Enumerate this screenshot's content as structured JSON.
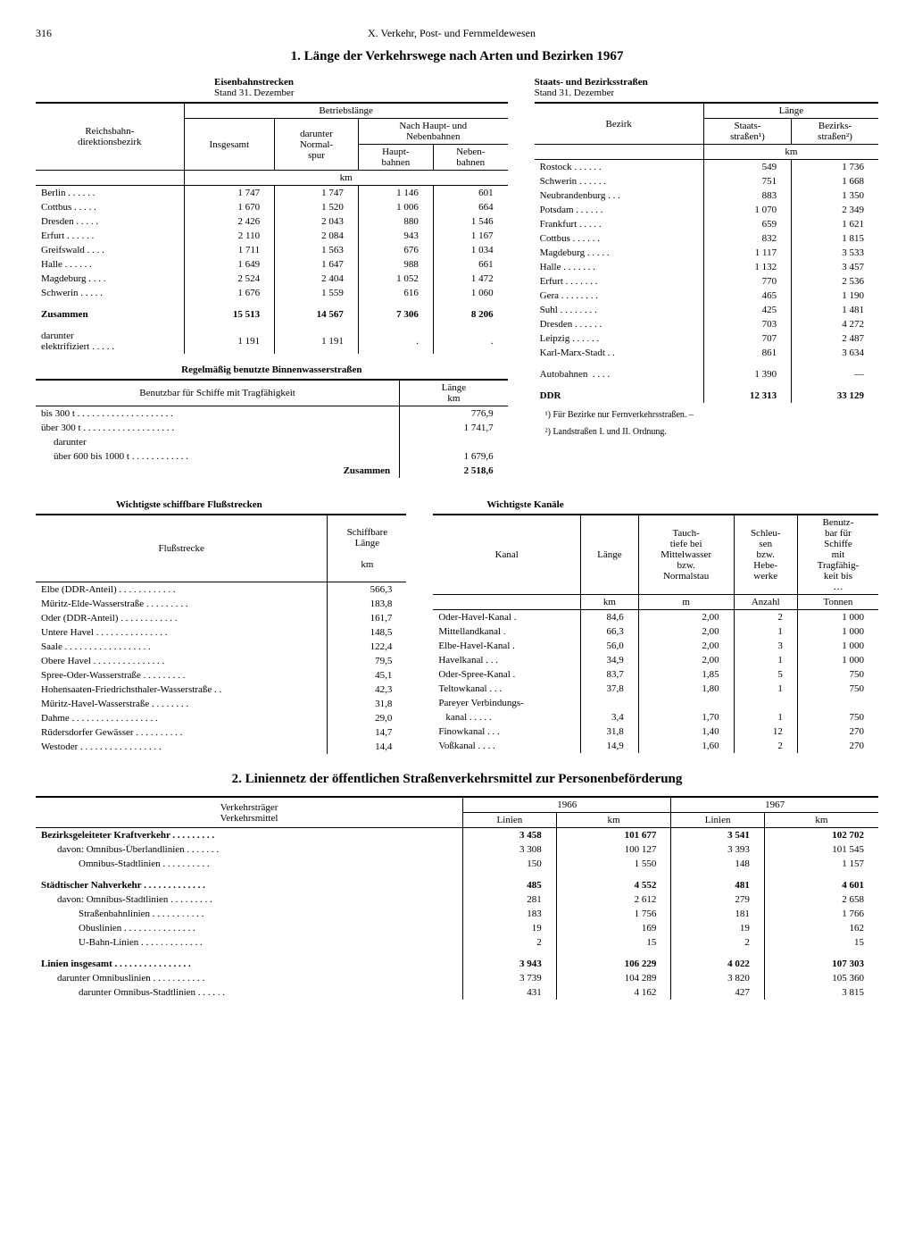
{
  "page_number": "316",
  "chapter": "X. Verkehr, Post- und Fernmeldewesen",
  "heading1": "1. Länge der Verkehrswege nach Arten und Bezirken 1967",
  "heading2": "2. Liniennetz der öffentlichen Straßenverkehrsmittel zur Personenbeförderung",
  "rail": {
    "title": "Eisenbahnstrecken",
    "stand": "Stand 31. Dezember",
    "col_region": "Reichsbahn-\ndirektionsbezirk",
    "col_total": "Insgesamt",
    "col_betrieb": "Betriebslänge",
    "col_normal": "darunter\nNormal-\nspur",
    "col_hauptneben": "Nach Haupt- und\nNebenbahnen",
    "col_haupt": "Haupt-\nbahnen",
    "col_neben": "Neben-\nbahnen",
    "unit": "km",
    "rows": [
      {
        "name": "Berlin",
        "total": "1 747",
        "normal": "1 747",
        "haupt": "1 146",
        "neben": "601"
      },
      {
        "name": "Cottbus",
        "total": "1 670",
        "normal": "1 520",
        "haupt": "1 006",
        "neben": "664"
      },
      {
        "name": "Dresden",
        "total": "2 426",
        "normal": "2 043",
        "haupt": "880",
        "neben": "1 546"
      },
      {
        "name": "Erfurt",
        "total": "2 110",
        "normal": "2 084",
        "haupt": "943",
        "neben": "1 167"
      },
      {
        "name": "Greifswald",
        "total": "1 711",
        "normal": "1 563",
        "haupt": "676",
        "neben": "1 034"
      },
      {
        "name": "Halle",
        "total": "1 649",
        "normal": "1 647",
        "haupt": "988",
        "neben": "661"
      },
      {
        "name": "Magdeburg",
        "total": "2 524",
        "normal": "2 404",
        "haupt": "1 052",
        "neben": "1 472"
      },
      {
        "name": "Schwerin",
        "total": "1 676",
        "normal": "1 559",
        "haupt": "616",
        "neben": "1 060"
      }
    ],
    "sum_label": "Zusammen",
    "sum": {
      "total": "15 513",
      "normal": "14 567",
      "haupt": "7 306",
      "neben": "8 206"
    },
    "electrified_label": "darunter\nelektrifiziert",
    "electrified": {
      "total": "1 191",
      "normal": "1 191",
      "haupt": ".",
      "neben": "."
    }
  },
  "roads": {
    "title": "Staats- und Bezirksstraßen",
    "stand": "Stand 31. Dezember",
    "col_bezirk": "Bezirk",
    "col_laenge": "Länge",
    "col_staats": "Staats-\nstraßen¹)",
    "col_bezirks": "Bezirks-\nstraßen²)",
    "unit": "km",
    "rows": [
      {
        "name": "Rostock",
        "a": "549",
        "b": "1 736"
      },
      {
        "name": "Schwerin",
        "a": "751",
        "b": "1 668"
      },
      {
        "name": "Neubrandenburg",
        "a": "883",
        "b": "1 350"
      },
      {
        "name": "Potsdam",
        "a": "1 070",
        "b": "2 349"
      },
      {
        "name": "Frankfurt",
        "a": "659",
        "b": "1 621"
      },
      {
        "name": "Cottbus",
        "a": "832",
        "b": "1 815"
      },
      {
        "name": "Magdeburg",
        "a": "1 117",
        "b": "3 533"
      },
      {
        "name": "Halle",
        "a": "1 132",
        "b": "3 457"
      },
      {
        "name": "Erfurt",
        "a": "770",
        "b": "2 536"
      },
      {
        "name": "Gera",
        "a": "465",
        "b": "1 190"
      },
      {
        "name": "Suhl",
        "a": "425",
        "b": "1 481"
      },
      {
        "name": "Dresden",
        "a": "703",
        "b": "4 272"
      },
      {
        "name": "Leipzig",
        "a": "707",
        "b": "2 487"
      },
      {
        "name": "Karl-Marx-Stadt .",
        "a": "861",
        "b": "3 634"
      }
    ],
    "autobahn_label": "Autobahnen",
    "autobahn": {
      "a": "1 390",
      "b": "—"
    },
    "ddr_label": "DDR",
    "ddr": {
      "a": "12 313",
      "b": "33 129"
    },
    "footnote1": "¹) Für Bezirke nur Fernverkehrsstraßen. –",
    "footnote2": "²) Landstraßen I. und II. Ordnung."
  },
  "waterways": {
    "title": "Regelmäßig benutzte Binnenwasserstraßen",
    "col_desc": "Benutzbar für Schiffe mit Tragfähigkeit",
    "col_len": "Länge\nkm",
    "rows": [
      {
        "name": "bis 300 t",
        "val": "776,9"
      },
      {
        "name": "über 300 t",
        "val": "1 741,7"
      },
      {
        "name": "darunter",
        "val": ""
      },
      {
        "name": "über 600 bis 1000 t",
        "val": "1 679,6"
      }
    ],
    "sum_label": "Zusammen",
    "sum": "2 518,6"
  },
  "rivers": {
    "title": "Wichtigste schiffbare Flußstrecken",
    "col_name": "Flußstrecke",
    "col_len": "Schiffbare\nLänge\n\nkm",
    "rows": [
      {
        "name": "Elbe (DDR-Anteil)",
        "val": "566,3"
      },
      {
        "name": "Müritz-Elde-Wasserstraße",
        "val": "183,8"
      },
      {
        "name": "Oder (DDR-Anteil)",
        "val": "161,7"
      },
      {
        "name": "Untere Havel",
        "val": "148,5"
      },
      {
        "name": "Saale",
        "val": "122,4"
      },
      {
        "name": "Obere Havel",
        "val": "79,5"
      },
      {
        "name": "Spree-Oder-Wasserstraße",
        "val": "45,1"
      },
      {
        "name": "Hohensaaten-Friedrichsthaler-Wasserstraße .",
        "val": "42,3"
      },
      {
        "name": "Müritz-Havel-Wasserstraße",
        "val": "31,8"
      },
      {
        "name": "Dahme",
        "val": "29,0"
      },
      {
        "name": "Rüdersdorfer Gewässer",
        "val": "14,7"
      },
      {
        "name": "Westoder",
        "val": "14,4"
      }
    ]
  },
  "canals": {
    "title": "Wichtigste Kanäle",
    "col_name": "Kanal",
    "col_len": "Länge",
    "col_depth": "Tauch-\ntiefe bei\nMittelwasser\nbzw.\nNormalstau",
    "col_locks": "Schleu-\nsen\nbzw.\nHebe-\nwerke",
    "col_cap": "Benutz-\nbar für\nSchiffe\nmit\nTragfähig-\nkeit bis\n…",
    "unit_km": "km",
    "unit_m": "m",
    "unit_anz": "Anzahl",
    "unit_t": "Tonnen",
    "rows": [
      {
        "name": "Oder-Havel-Kanal",
        "l": "84,6",
        "d": "2,00",
        "s": "2",
        "c": "1 000"
      },
      {
        "name": "Mittellandkanal",
        "l": "66,3",
        "d": "2,00",
        "s": "1",
        "c": "1 000"
      },
      {
        "name": "Elbe-Havel-Kanal",
        "l": "56,0",
        "d": "2,00",
        "s": "3",
        "c": "1 000"
      },
      {
        "name": "Havelkanal",
        "l": "34,9",
        "d": "2,00",
        "s": "1",
        "c": "1 000"
      },
      {
        "name": "Oder-Spree-Kanal",
        "l": "83,7",
        "d": "1,85",
        "s": "5",
        "c": "750"
      },
      {
        "name": "Teltowkanal",
        "l": "37,8",
        "d": "1,80",
        "s": "1",
        "c": "750"
      },
      {
        "name": "Pareyer Verbindungs-",
        "l": "",
        "d": "",
        "s": "",
        "c": ""
      },
      {
        "name": "kanal",
        "l": "3,4",
        "d": "1,70",
        "s": "1",
        "c": "750"
      },
      {
        "name": "Finowkanal",
        "l": "31,8",
        "d": "1,40",
        "s": "12",
        "c": "270"
      },
      {
        "name": "Voßkanal",
        "l": "14,9",
        "d": "1,60",
        "s": "2",
        "c": "270"
      }
    ]
  },
  "lines": {
    "col_carrier": "Verkehrsträger\nVerkehrsmittel",
    "y1": "1966",
    "y2": "1967",
    "col_linien": "Linien",
    "col_km": "km",
    "rows": [
      {
        "name": "Bezirksgeleiteter Kraftverkehr",
        "l1": "3 458",
        "k1": "101 677",
        "l2": "3 541",
        "k2": "102 702",
        "bold": true
      },
      {
        "name": "davon: Omnibus-Überlandlinien",
        "l1": "3 308",
        "k1": "100 127",
        "l2": "3 393",
        "k2": "101 545",
        "indent": 1
      },
      {
        "name": "Omnibus-Stadtlinien",
        "l1": "150",
        "k1": "1 550",
        "l2": "148",
        "k2": "1 157",
        "indent": 2
      },
      {
        "name": "",
        "l1": "",
        "k1": "",
        "l2": "",
        "k2": ""
      },
      {
        "name": "Städtischer Nahverkehr",
        "l1": "485",
        "k1": "4 552",
        "l2": "481",
        "k2": "4 601",
        "bold": true
      },
      {
        "name": "davon: Omnibus-Stadtlinien",
        "l1": "281",
        "k1": "2 612",
        "l2": "279",
        "k2": "2 658",
        "indent": 1
      },
      {
        "name": "Straßenbahnlinien",
        "l1": "183",
        "k1": "1 756",
        "l2": "181",
        "k2": "1 766",
        "indent": 2
      },
      {
        "name": "Obuslinien",
        "l1": "19",
        "k1": "169",
        "l2": "19",
        "k2": "162",
        "indent": 2
      },
      {
        "name": "U-Bahn-Linien",
        "l1": "2",
        "k1": "15",
        "l2": "2",
        "k2": "15",
        "indent": 2
      },
      {
        "name": "",
        "l1": "",
        "k1": "",
        "l2": "",
        "k2": ""
      },
      {
        "name": "Linien insgesamt",
        "l1": "3 943",
        "k1": "106 229",
        "l2": "4 022",
        "k2": "107 303",
        "bold": true
      },
      {
        "name": "darunter Omnibuslinien",
        "l1": "3 739",
        "k1": "104 289",
        "l2": "3 820",
        "k2": "105 360",
        "indent": 1
      },
      {
        "name": "darunter Omnibus-Stadtlinien",
        "l1": "431",
        "k1": "4 162",
        "l2": "427",
        "k2": "3 815",
        "indent": 2
      }
    ]
  }
}
